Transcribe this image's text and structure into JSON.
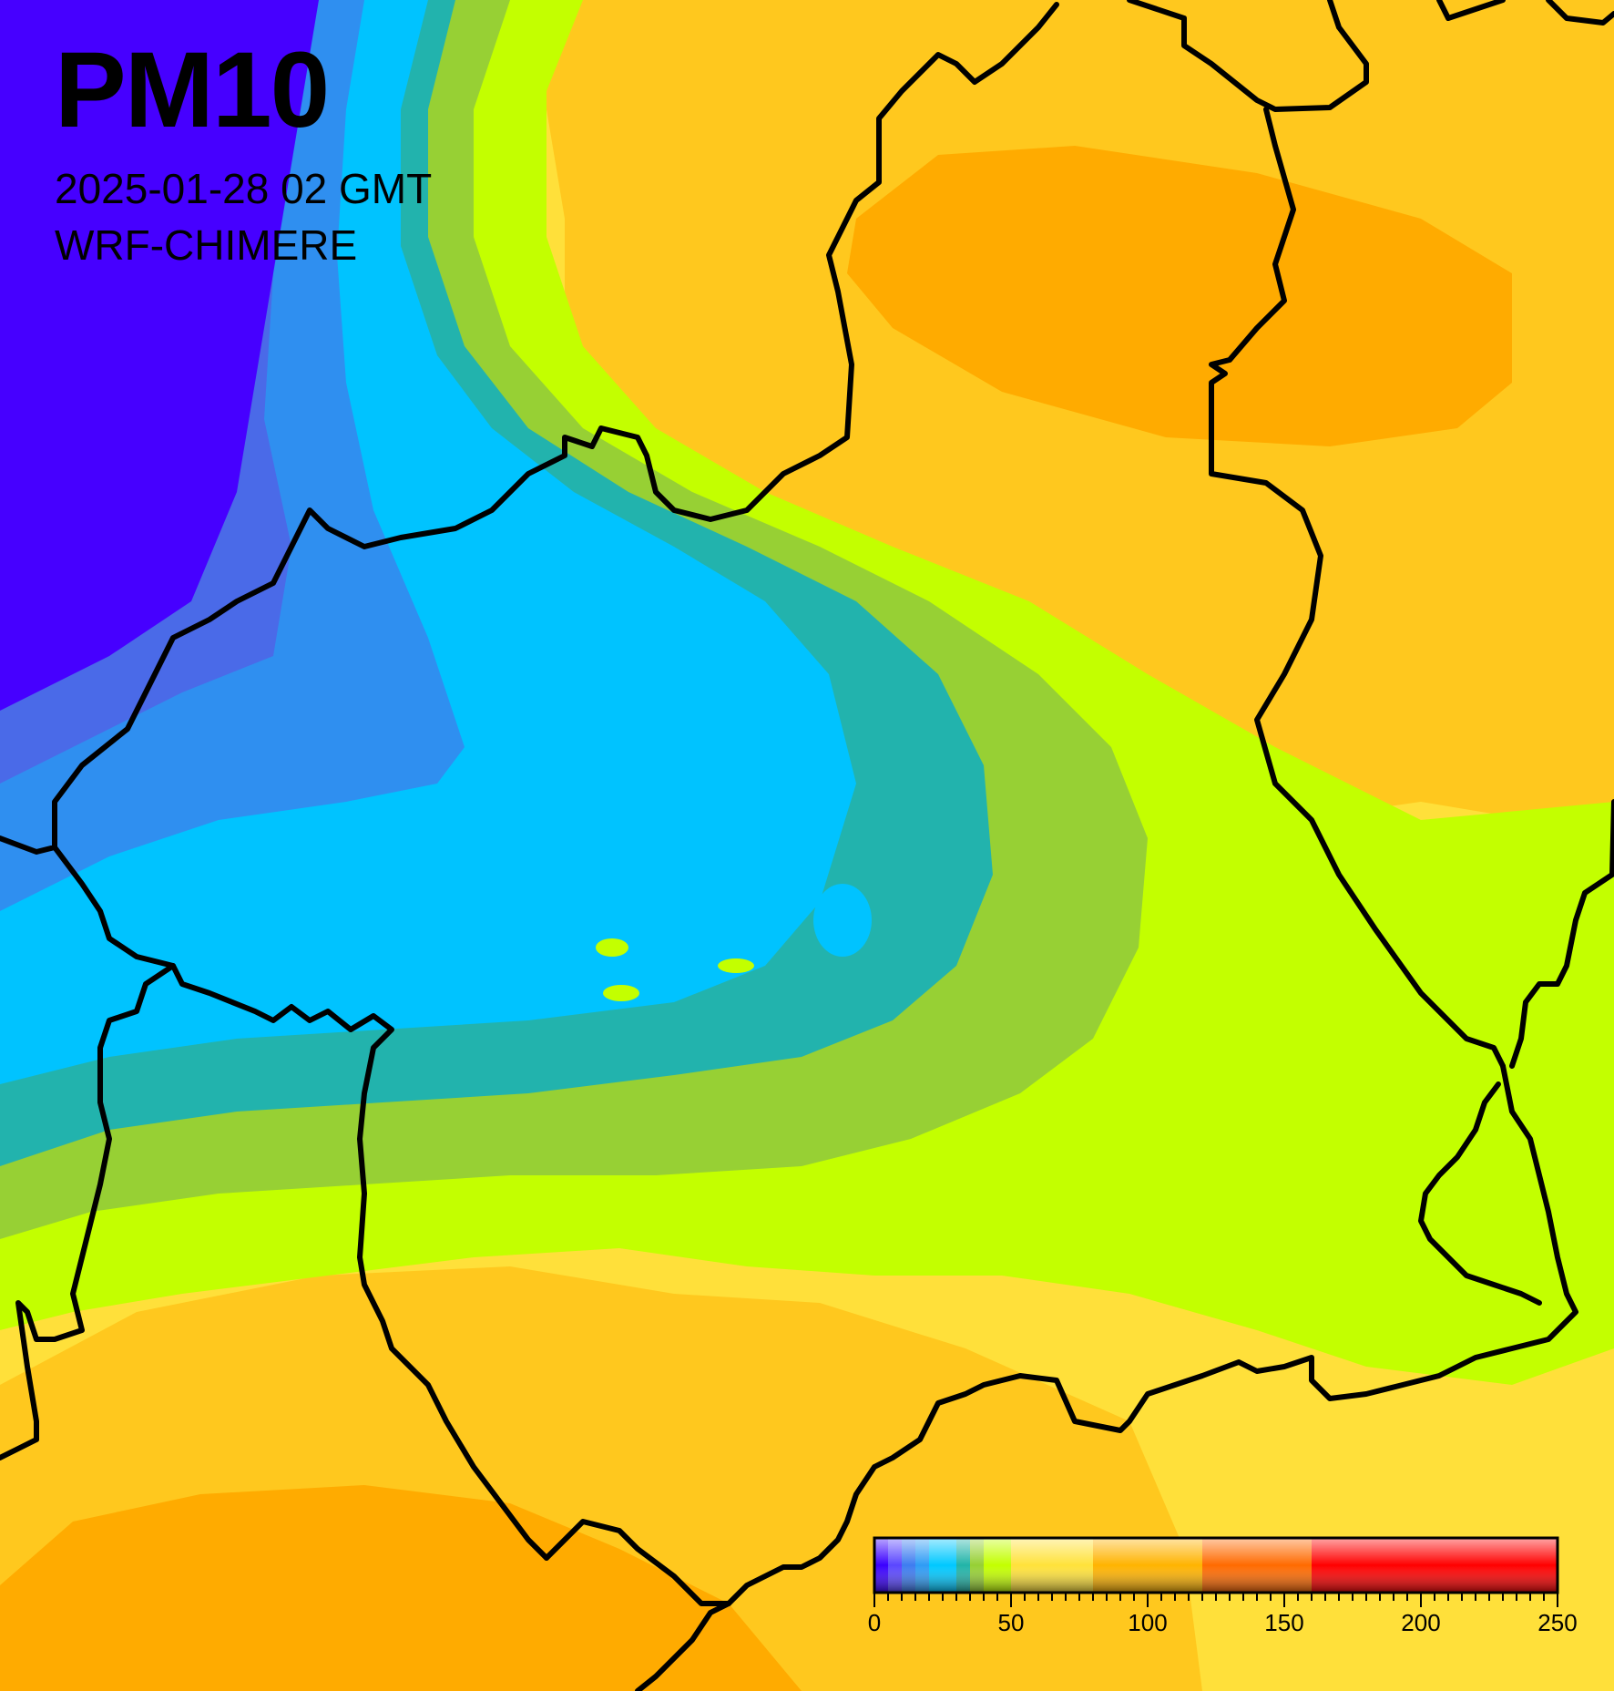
{
  "map": {
    "title": "PM10",
    "datetime": "2025-01-28 02 GMT",
    "model": "WRF-CHIMERE"
  },
  "legend": {
    "min": 0,
    "max": 250,
    "tick_labels": [
      "0",
      "50",
      "100",
      "150",
      "200",
      "250"
    ],
    "tick_values": [
      0,
      50,
      100,
      150,
      200,
      250
    ],
    "bins": [
      {
        "from": 0,
        "to": 5,
        "color": "#3a00ff"
      },
      {
        "from": 5,
        "to": 10,
        "color": "#5a46ff"
      },
      {
        "from": 10,
        "to": 15,
        "color": "#3d7cf0"
      },
      {
        "from": 15,
        "to": 20,
        "color": "#2e9cf5"
      },
      {
        "from": 20,
        "to": 30,
        "color": "#00c8ff"
      },
      {
        "from": 30,
        "to": 35,
        "color": "#21b4a8"
      },
      {
        "from": 35,
        "to": 40,
        "color": "#96d034"
      },
      {
        "from": 40,
        "to": 50,
        "color": "#c3ff00"
      },
      {
        "from": 50,
        "to": 80,
        "color": "#ffe23a"
      },
      {
        "from": 80,
        "to": 120,
        "color": "#ffb300"
      },
      {
        "from": 120,
        "to": 160,
        "color": "#ff6a00"
      },
      {
        "from": 160,
        "to": 250,
        "color": "#ff0000"
      }
    ]
  },
  "colors": {
    "deep_blue": "#4600ff",
    "blue": "#4a6ae8",
    "mid_blue": "#2f8ff0",
    "cyan": "#00c3ff",
    "teal": "#22b3ad",
    "olive_green": "#97d034",
    "lime": "#c3ff00",
    "yellow": "#ffe03a",
    "light_orange": "#ffc81e",
    "orange": "#ffab00",
    "border": "#000000"
  }
}
